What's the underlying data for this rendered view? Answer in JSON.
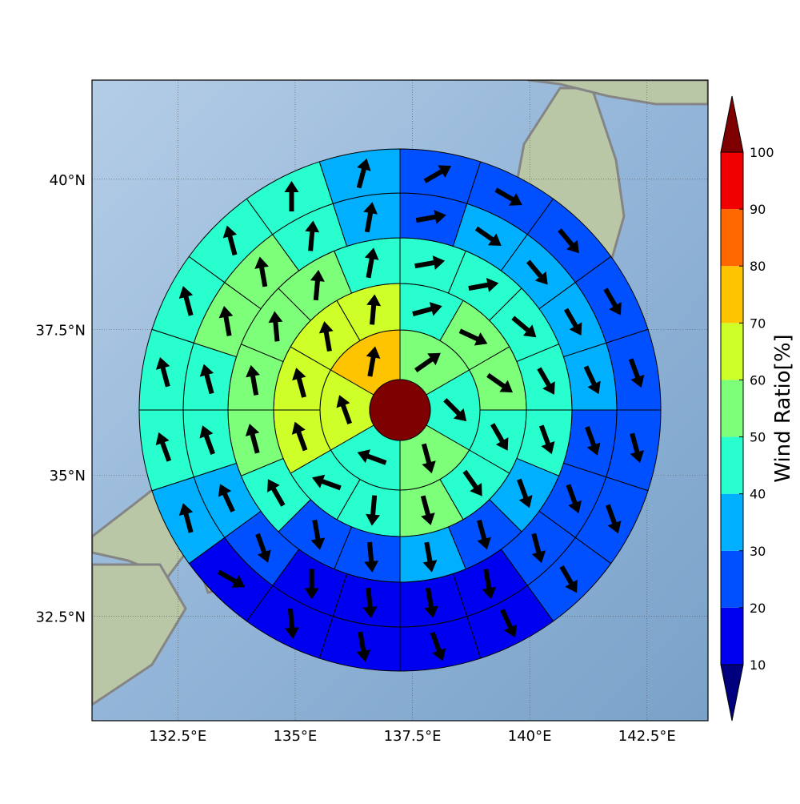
{
  "chart_data": {
    "type": "polar-grid-map",
    "xlim": [
      130.67,
      143.8
    ],
    "ylim": [
      30.6,
      41.6
    ],
    "xticks": [
      {
        "value": 132.5,
        "label": "132.5°E"
      },
      {
        "value": 135,
        "label": "135°E"
      },
      {
        "value": 137.5,
        "label": "137.5°E"
      },
      {
        "value": 140,
        "label": "140°E"
      },
      {
        "value": 142.5,
        "label": "142.5°E"
      }
    ],
    "yticks": [
      {
        "value": 32.5,
        "label": "32.5°N"
      },
      {
        "value": 35,
        "label": "35°N"
      },
      {
        "value": 37.5,
        "label": "37.5°N"
      },
      {
        "value": 40,
        "label": "40°N"
      }
    ],
    "grid": true,
    "rings": [
      {
        "values": [
          55,
          45,
          55,
          45,
          65,
          75
        ],
        "directions": [
          55,
          135,
          165,
          290,
          340,
          10
        ]
      },
      {
        "values": [
          45,
          55,
          55,
          45,
          45,
          55,
          45,
          45,
          65,
          65,
          65,
          65
        ],
        "directions": [
          75,
          115,
          125,
          150,
          145,
          165,
          185,
          290,
          340,
          345,
          350,
          5
        ]
      },
      {
        "values": [
          45,
          45,
          45,
          45,
          45,
          35,
          25,
          35,
          25,
          25,
          45,
          55,
          55,
          55,
          55,
          45
        ],
        "directions": [
          80,
          80,
          130,
          150,
          160,
          160,
          165,
          170,
          175,
          170,
          330,
          345,
          350,
          355,
          5,
          10
        ]
      },
      {
        "values": [
          25,
          35,
          35,
          35,
          35,
          25,
          25,
          25,
          15,
          15,
          15,
          15,
          25,
          35,
          45,
          45,
          55,
          55,
          45,
          35
        ],
        "directions": [
          80,
          125,
          140,
          150,
          155,
          160,
          160,
          165,
          170,
          170,
          175,
          180,
          160,
          335,
          340,
          345,
          350,
          350,
          5,
          10
        ]
      },
      {
        "values": [
          25,
          25,
          25,
          25,
          25,
          25,
          25,
          25,
          15,
          15,
          15,
          15,
          15,
          35,
          45,
          45,
          45,
          45,
          45,
          35
        ],
        "directions": [
          60,
          120,
          140,
          150,
          160,
          165,
          160,
          150,
          155,
          160,
          170,
          175,
          120,
          345,
          340,
          345,
          345,
          345,
          0,
          15
        ]
      }
    ],
    "colorbar": {
      "label": "Wind Ratio[%]",
      "ticks": [
        10,
        20,
        30,
        40,
        50,
        60,
        70,
        80,
        90,
        100
      ],
      "colors": [
        "#0000f0",
        "#0050ff",
        "#00b0ff",
        "#29ffce",
        "#7dff7a",
        "#ceff29",
        "#ffc400",
        "#ff6800",
        "#f00000"
      ],
      "under": "#00007f",
      "over": "#7f0000"
    }
  }
}
